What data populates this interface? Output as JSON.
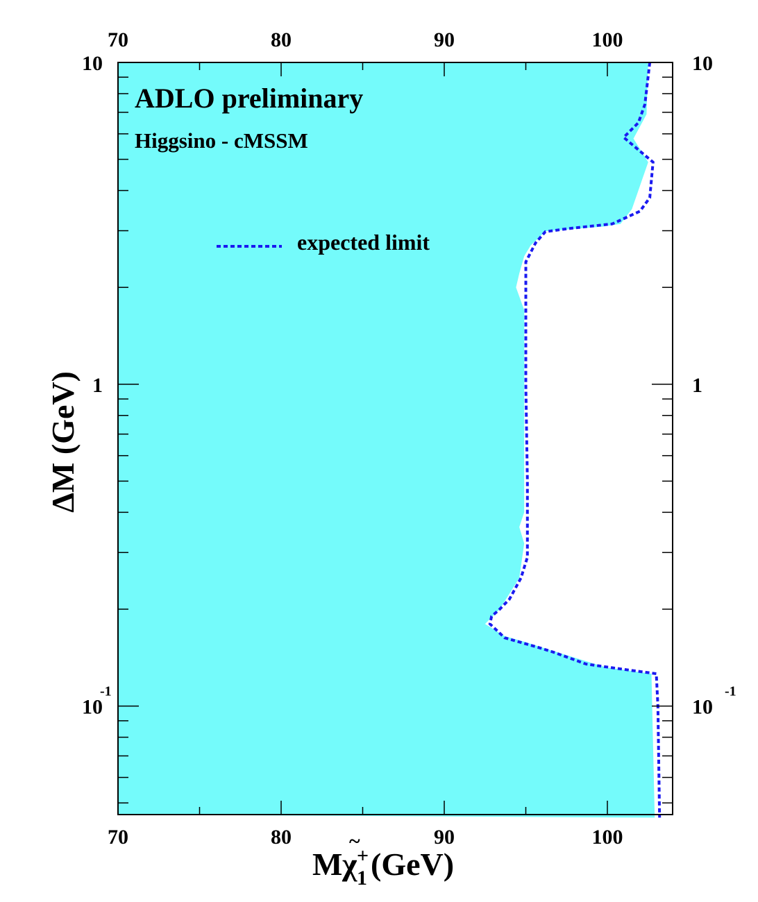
{
  "chart_data": {
    "type": "area",
    "title": "ADLO preliminary",
    "subtitle": "Higgsino - cMSSM",
    "xlabel": "Mχ̃₁⁺(GeV)",
    "xlabel_parts": {
      "main": "M",
      "symbol": "χ",
      "tilde": "~",
      "sub": "1",
      "sup": "+",
      "unit": "(GeV)"
    },
    "ylabel": "ΔM (GeV)",
    "xlim": [
      70,
      104
    ],
    "ylim": [
      0.046,
      10
    ],
    "yscale": "log",
    "x_ticks": [
      70,
      80,
      90,
      100
    ],
    "x_tick_labels": [
      "70",
      "80",
      "90",
      "100"
    ],
    "y_ticks": [
      {
        "value": 10,
        "base": "10",
        "exp": ""
      },
      {
        "value": 1,
        "base": "1",
        "exp": ""
      },
      {
        "value": 0.1,
        "base": "10",
        "exp": "-1"
      }
    ],
    "legend_position": "top-center",
    "colors": {
      "excluded": "#74fbfb",
      "expected": "#1a1af0",
      "frame": "#000000"
    },
    "series": [
      {
        "name": "",
        "kind": "excluded-region",
        "boundary": [
          [
            102.5,
            10
          ],
          [
            102.4,
            6.9
          ],
          [
            101.6,
            5.8
          ],
          [
            102.5,
            4.9
          ],
          [
            101.5,
            3.5
          ],
          [
            100.8,
            3.15
          ],
          [
            99.7,
            3.09
          ],
          [
            96.2,
            2.99
          ],
          [
            95.3,
            2.7
          ],
          [
            94.9,
            2.5
          ],
          [
            94.6,
            2.21
          ],
          [
            94.4,
            2.0
          ],
          [
            94.9,
            1.7
          ],
          [
            94.9,
            1.5
          ],
          [
            94.9,
            1.0
          ],
          [
            94.9,
            0.6
          ],
          [
            94.9,
            0.4
          ],
          [
            94.6,
            0.36
          ],
          [
            94.9,
            0.32
          ],
          [
            94.6,
            0.25
          ],
          [
            93.4,
            0.2
          ],
          [
            92.5,
            0.18
          ],
          [
            93.7,
            0.165
          ],
          [
            95.0,
            0.158
          ],
          [
            96.0,
            0.152
          ],
          [
            99.9,
            0.132
          ],
          [
            102.7,
            0.126
          ],
          [
            102.9,
            0.045
          ]
        ]
      },
      {
        "name": "expected limit",
        "kind": "expected-limit",
        "values": [
          [
            102.6,
            10
          ],
          [
            102.3,
            7.4
          ],
          [
            101.9,
            6.5
          ],
          [
            101.0,
            5.85
          ],
          [
            102.8,
            4.9
          ],
          [
            102.6,
            3.8
          ],
          [
            102.0,
            3.45
          ],
          [
            100.3,
            3.15
          ],
          [
            97.7,
            3.05
          ],
          [
            96.2,
            2.98
          ],
          [
            95.6,
            2.75
          ],
          [
            95.0,
            2.4
          ],
          [
            95.0,
            1.0
          ],
          [
            95.1,
            0.5
          ],
          [
            95.1,
            0.29
          ],
          [
            94.7,
            0.25
          ],
          [
            94.0,
            0.215
          ],
          [
            93.4,
            0.2
          ],
          [
            92.9,
            0.19
          ],
          [
            92.8,
            0.18
          ],
          [
            93.7,
            0.163
          ],
          [
            95.8,
            0.152
          ],
          [
            96.7,
            0.147
          ],
          [
            98.7,
            0.135
          ],
          [
            101.0,
            0.13
          ],
          [
            103.0,
            0.126
          ],
          [
            103.1,
            0.1
          ],
          [
            103.2,
            0.045
          ]
        ]
      }
    ]
  }
}
